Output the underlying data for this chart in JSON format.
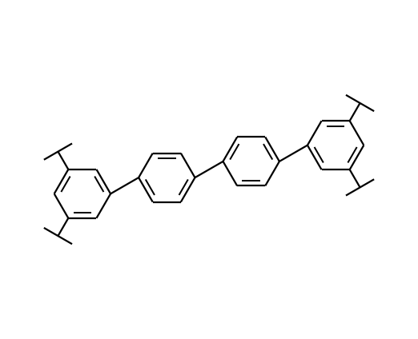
{
  "background_color": "#ffffff",
  "line_color": "#000000",
  "line_width": 1.6,
  "figsize": [
    5.22,
    4.24
  ],
  "dpi": 100,
  "hex_r": 0.52,
  "tbu_stem": 0.38,
  "tbu_bar": 0.3
}
